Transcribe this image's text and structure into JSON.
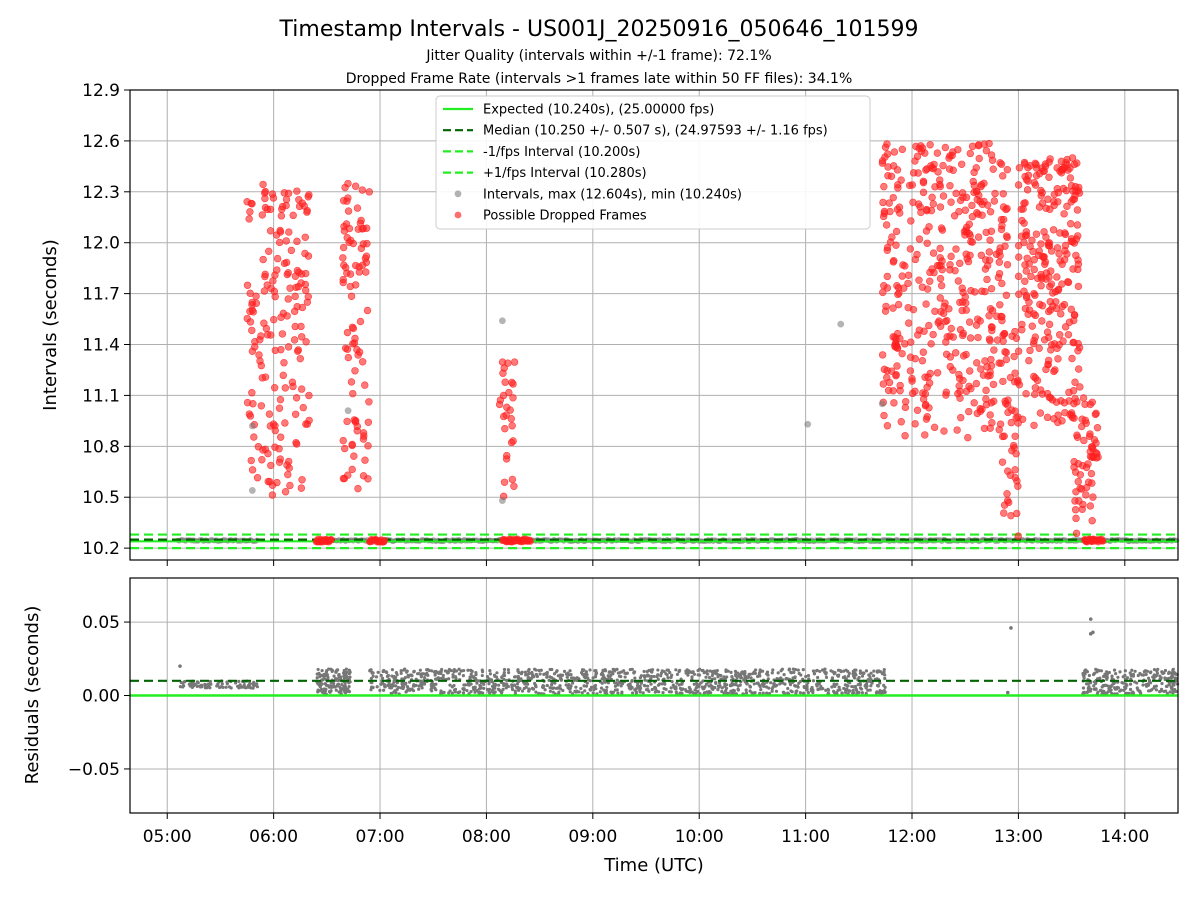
{
  "chart_data": {
    "type": "scatter",
    "title": "Timestamp Intervals - US001J_20250916_050646_101599",
    "subtitles": [
      "Jitter Quality (intervals within +/-1 frame): 72.1%",
      "Dropped Frame Rate (intervals >1 frames late within 50 FF files): 34.1%"
    ],
    "xlabel": "Time (UTC)",
    "x_ticks": [
      "05:00",
      "06:00",
      "07:00",
      "08:00",
      "09:00",
      "10:00",
      "11:00",
      "12:00",
      "13:00",
      "14:00"
    ],
    "x_range_hours": [
      4.65,
      14.5
    ],
    "top_panel": {
      "ylabel": "Intervals (seconds)",
      "y_ticks": [
        "12.9",
        "12.6",
        "12.3",
        "12.0",
        "11.7",
        "11.4",
        "11.1",
        "10.8",
        "10.5",
        "10.2"
      ],
      "ylim": [
        10.13,
        12.9
      ],
      "expected": 10.24,
      "median": 10.25,
      "lower_interval": 10.2,
      "upper_interval": 10.28,
      "baseline_segments": [
        [
          5.1,
          5.85
        ],
        [
          6.4,
          14.5
        ]
      ],
      "dropped_bands": [
        [
          6.4,
          6.55
        ],
        [
          6.9,
          7.05
        ],
        [
          8.15,
          8.42
        ],
        [
          13.62,
          13.8
        ]
      ],
      "clusters": [
        {
          "x": [
            5.75,
            6.35
          ],
          "y": [
            10.5,
            12.35
          ],
          "n": 180
        },
        {
          "x": [
            6.65,
            6.9
          ],
          "y": [
            10.5,
            12.35
          ],
          "n": 90
        },
        {
          "x": [
            8.12,
            8.28
          ],
          "y": [
            10.48,
            11.3
          ],
          "n": 28
        },
        {
          "x": [
            11.72,
            12.9
          ],
          "y": [
            10.85,
            12.6
          ],
          "n": 420
        },
        {
          "x": [
            12.85,
            13.0
          ],
          "y": [
            10.25,
            11.5
          ],
          "n": 45
        },
        {
          "x": [
            13.0,
            13.58
          ],
          "y": [
            10.9,
            12.5
          ],
          "n": 260
        },
        {
          "x": [
            13.52,
            13.75
          ],
          "y": [
            10.25,
            11.1
          ],
          "n": 60
        }
      ],
      "gray_points": [
        [
          5.8,
          10.54
        ],
        [
          5.8,
          10.92
        ],
        [
          6.7,
          11.01
        ],
        [
          8.15,
          11.54
        ],
        [
          8.15,
          10.48
        ],
        [
          11.02,
          10.93
        ],
        [
          11.33,
          11.52
        ],
        [
          11.72,
          11.05
        ]
      ]
    },
    "bottom_panel": {
      "ylabel": "Residuals (seconds)",
      "y_ticks": [
        "0.05",
        "0.00",
        "−0.05"
      ],
      "ylim": [
        -0.08,
        0.08
      ],
      "expected": 0.0,
      "median": 0.01,
      "bands": [
        {
          "x": [
            5.12,
            5.85
          ],
          "y": [
            0.005,
            0.01
          ],
          "n": 90
        },
        {
          "x": [
            6.4,
            6.72
          ],
          "y": [
            0.001,
            0.018
          ],
          "n": 140
        },
        {
          "x": [
            6.9,
            11.75
          ],
          "y": [
            0.001,
            0.018
          ],
          "n": 1200
        },
        {
          "x": [
            13.6,
            14.5
          ],
          "y": [
            0.001,
            0.018
          ],
          "n": 250
        }
      ],
      "outliers": [
        [
          5.12,
          0.02
        ],
        [
          12.93,
          0.046
        ],
        [
          12.9,
          0.002
        ],
        [
          13.68,
          0.052
        ],
        [
          13.68,
          0.042
        ],
        [
          13.7,
          0.043
        ],
        [
          13.62,
          0.002
        ]
      ]
    },
    "legend": [
      {
        "label": "Expected (10.240s), (25.00000 fps)",
        "style": "solid",
        "color": "#22ee22"
      },
      {
        "label": "Median (10.250 +/- 0.507 s), (24.97593 +/- 1.16 fps)",
        "style": "dashed",
        "color": "#006400"
      },
      {
        "label": "-1/fps Interval (10.200s)",
        "style": "dashed",
        "color": "#22ee22"
      },
      {
        "label": "+1/fps Interval (10.280s)",
        "style": "dashed",
        "color": "#22ee22"
      },
      {
        "label": "Intervals, max (12.604s), min (10.240s)",
        "style": "dot",
        "color": "#888888"
      },
      {
        "label": "Possible Dropped Frames",
        "style": "dot",
        "color": "#ff2020"
      }
    ],
    "colors": {
      "expected": "#22ee22",
      "median": "#006400",
      "dropped": "#ff2020",
      "intervals": "#777777",
      "grid": "#b0b0b0"
    }
  }
}
